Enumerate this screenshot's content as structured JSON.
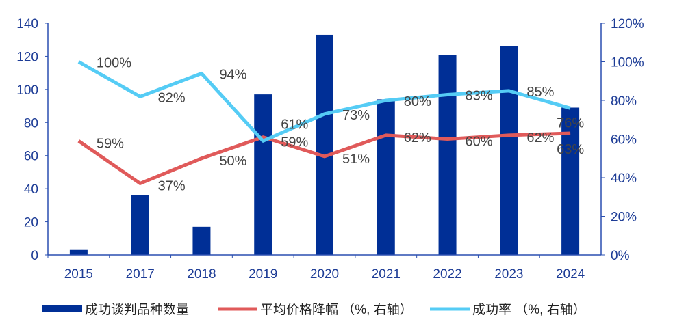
{
  "chart_data": {
    "type": "bar+line",
    "categories": [
      "2015",
      "2017",
      "2018",
      "2019",
      "2020",
      "2021",
      "2022",
      "2023",
      "2024"
    ],
    "left_axis": {
      "ylim": [
        0,
        140
      ],
      "ticks": [
        0,
        20,
        40,
        60,
        80,
        100,
        120,
        140
      ],
      "tick_labels": [
        "0",
        "20",
        "40",
        "60",
        "80",
        "100",
        "120",
        "140"
      ]
    },
    "right_axis": {
      "ylim": [
        0,
        120
      ],
      "ticks": [
        0,
        20,
        40,
        60,
        80,
        100,
        120
      ],
      "tick_labels": [
        "0%",
        "20%",
        "40%",
        "60%",
        "80%",
        "100%",
        "120%"
      ]
    },
    "series": [
      {
        "name": "成功谈判品种数量",
        "type": "bar",
        "axis": "left",
        "color": "#002f96",
        "values": [
          3,
          36,
          17,
          97,
          133,
          94,
          121,
          126,
          89
        ]
      },
      {
        "name": "平均价格降幅 （%, 右轴）",
        "type": "line",
        "axis": "right",
        "color": "#e05a5a",
        "values": [
          59,
          37,
          50,
          61,
          51,
          62,
          60,
          62,
          63
        ],
        "labels": [
          "59%",
          "37%",
          "50%",
          "61%",
          "51%",
          "62%",
          "60%",
          "62%",
          "63%"
        ]
      },
      {
        "name": "成功率 （%, 右轴）",
        "type": "line",
        "axis": "right",
        "color": "#55ccf5",
        "values": [
          100,
          82,
          94,
          59,
          73,
          80,
          83,
          85,
          76
        ],
        "labels": [
          "100%",
          "82%",
          "94%",
          "59%",
          "73%",
          "80%",
          "83%",
          "85%",
          "76%"
        ]
      }
    ],
    "legend_position": "bottom",
    "grid": false
  }
}
